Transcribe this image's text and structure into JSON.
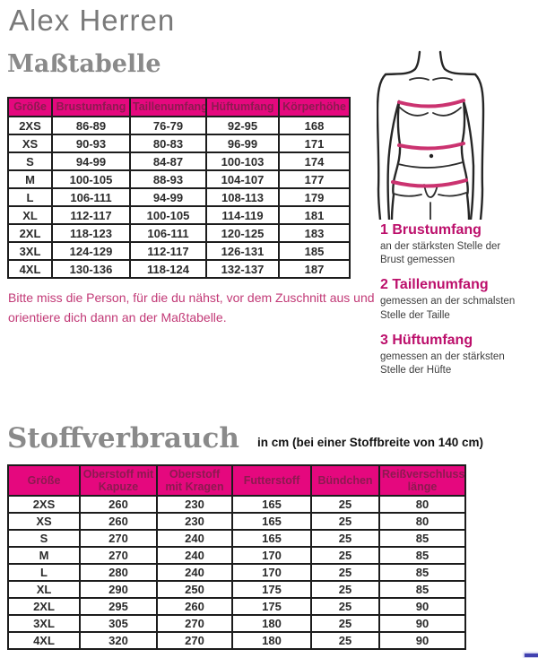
{
  "page": {
    "title": "Alex Herren",
    "section1_heading": "Maßtabelle",
    "section2_heading": "Stoffverbrauch",
    "section2_subheading": "in cm (bei einer Stoffbreite von 140 cm)",
    "note_line1": "Bitte miss die Person, für die du nähst, vor dem Zuschnitt aus und",
    "note_line2": "orientiere dich dann an der Maßtabelle."
  },
  "colors": {
    "accent_magenta": "#e5087e",
    "table_header_text": "#8c1a50",
    "pink_text": "#c23a77",
    "heading_gray": "#8a8a8a",
    "bottom_bar_blue": "#4141b0"
  },
  "size_table": {
    "headers": [
      "Größe",
      "Brustumfang",
      "Taillenumfang",
      "Hüftumfang",
      "Körperhöhe"
    ],
    "rows": [
      [
        "2XS",
        "86-89",
        "76-79",
        "92-95",
        "168"
      ],
      [
        "XS",
        "90-93",
        "80-83",
        "96-99",
        "171"
      ],
      [
        "S",
        "94-99",
        "84-87",
        "100-103",
        "174"
      ],
      [
        "M",
        "100-105",
        "88-93",
        "104-107",
        "177"
      ],
      [
        "L",
        "106-111",
        "94-99",
        "108-113",
        "179"
      ],
      [
        "XL",
        "112-117",
        "100-105",
        "114-119",
        "181"
      ],
      [
        "2XL",
        "118-123",
        "106-111",
        "120-125",
        "183"
      ],
      [
        "3XL",
        "124-129",
        "112-117",
        "126-131",
        "185"
      ],
      [
        "4XL",
        "130-136",
        "118-124",
        "132-137",
        "187"
      ]
    ]
  },
  "measure_legend": [
    {
      "title": "1 Brustumfang",
      "desc": "an der stärksten Stelle der Brust gemessen"
    },
    {
      "title": "2 Taillenumfang",
      "desc": "gemessen an der schmalsten Stelle der Taille"
    },
    {
      "title": "3 Hüftumfang",
      "desc": "gemessen an der stärksten Stelle der Hüfte"
    }
  ],
  "fabric_table": {
    "headers": [
      "Größe",
      "Oberstoff mit Kapuze",
      "Oberstoff mit Kragen",
      "Futterstoff",
      "Bündchen",
      "Reißverschluss länge"
    ],
    "rows": [
      [
        "2XS",
        "260",
        "230",
        "165",
        "25",
        "80"
      ],
      [
        "XS",
        "260",
        "230",
        "165",
        "25",
        "80"
      ],
      [
        "S",
        "270",
        "240",
        "165",
        "25",
        "85"
      ],
      [
        "M",
        "270",
        "240",
        "170",
        "25",
        "85"
      ],
      [
        "L",
        "280",
        "240",
        "170",
        "25",
        "85"
      ],
      [
        "XL",
        "290",
        "250",
        "175",
        "25",
        "85"
      ],
      [
        "2XL",
        "295",
        "260",
        "175",
        "25",
        "90"
      ],
      [
        "3XL",
        "305",
        "270",
        "180",
        "25",
        "90"
      ],
      [
        "4XL",
        "320",
        "270",
        "180",
        "25",
        "90"
      ]
    ]
  }
}
